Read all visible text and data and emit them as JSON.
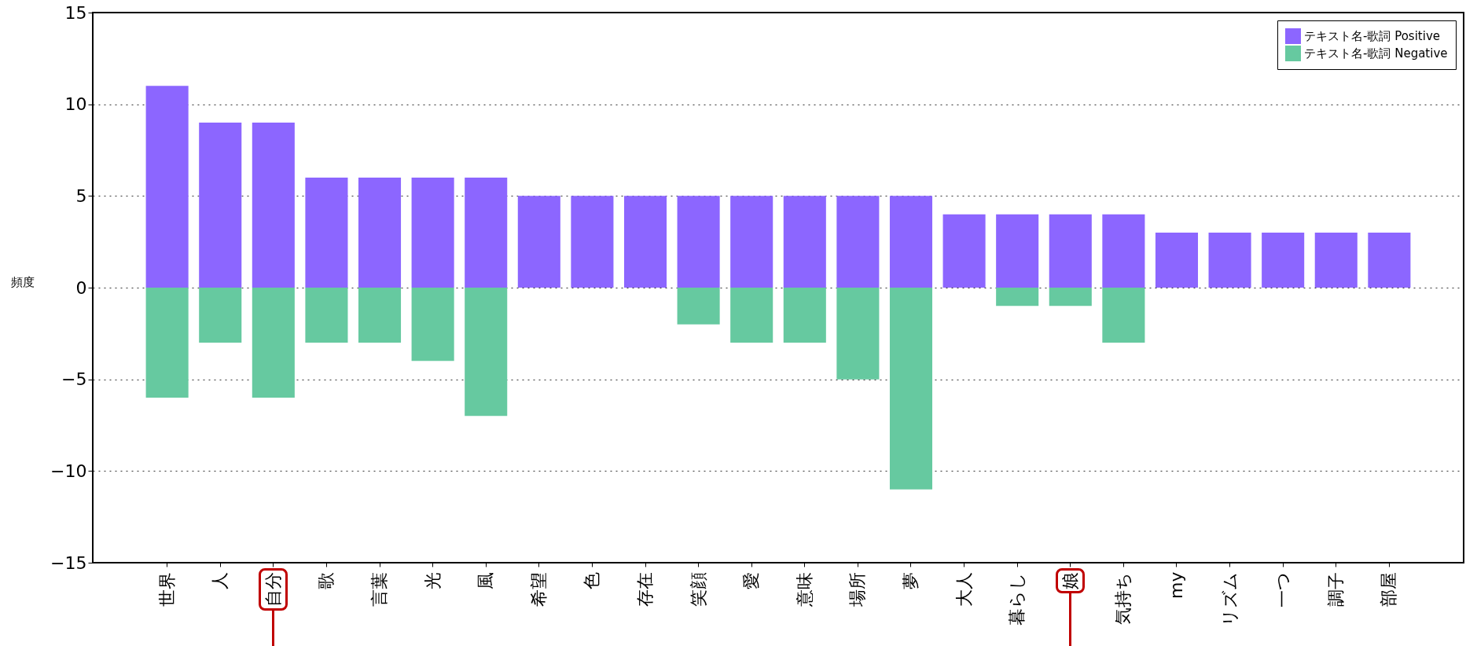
{
  "chart_data": {
    "type": "bar",
    "ylabel": "頻度",
    "stacked": true,
    "legend": "top right",
    "grid": "y",
    "categories": [
      "世界",
      "人",
      "自分",
      "歌",
      "言葉",
      "光",
      "風",
      "希望",
      "色",
      "存在",
      "笑顔",
      "愛",
      "意味",
      "場所",
      "夢",
      "大人",
      "暮らし",
      "娘",
      "気持ち",
      "my",
      "リズム",
      "一つ",
      "調子",
      "部屋"
    ],
    "series": [
      {
        "name": "テキスト名-歌詞 Positive",
        "color": "#8c66ff",
        "values": [
          11,
          9,
          9,
          6,
          6,
          6,
          6,
          5,
          5,
          5,
          5,
          5,
          5,
          5,
          5,
          4,
          4,
          4,
          4,
          3,
          3,
          3,
          3,
          3
        ]
      },
      {
        "name": "テキスト名-歌詞 Negative",
        "color": "#66c9a0",
        "values": [
          -6,
          -3,
          -6,
          -3,
          -3,
          -4,
          -7,
          0,
          0,
          0,
          -2,
          -3,
          -3,
          -5,
          -11,
          0,
          -1,
          -1,
          -3,
          0,
          0,
          0,
          0,
          0
        ]
      }
    ],
    "ylim": [
      -15,
      15
    ],
    "yticks": [
      {
        "value": -15,
        "label": "−15"
      },
      {
        "value": -10,
        "label": "−10"
      },
      {
        "value": -5,
        "label": "−5"
      },
      0,
      5,
      10,
      15
    ]
  }
}
